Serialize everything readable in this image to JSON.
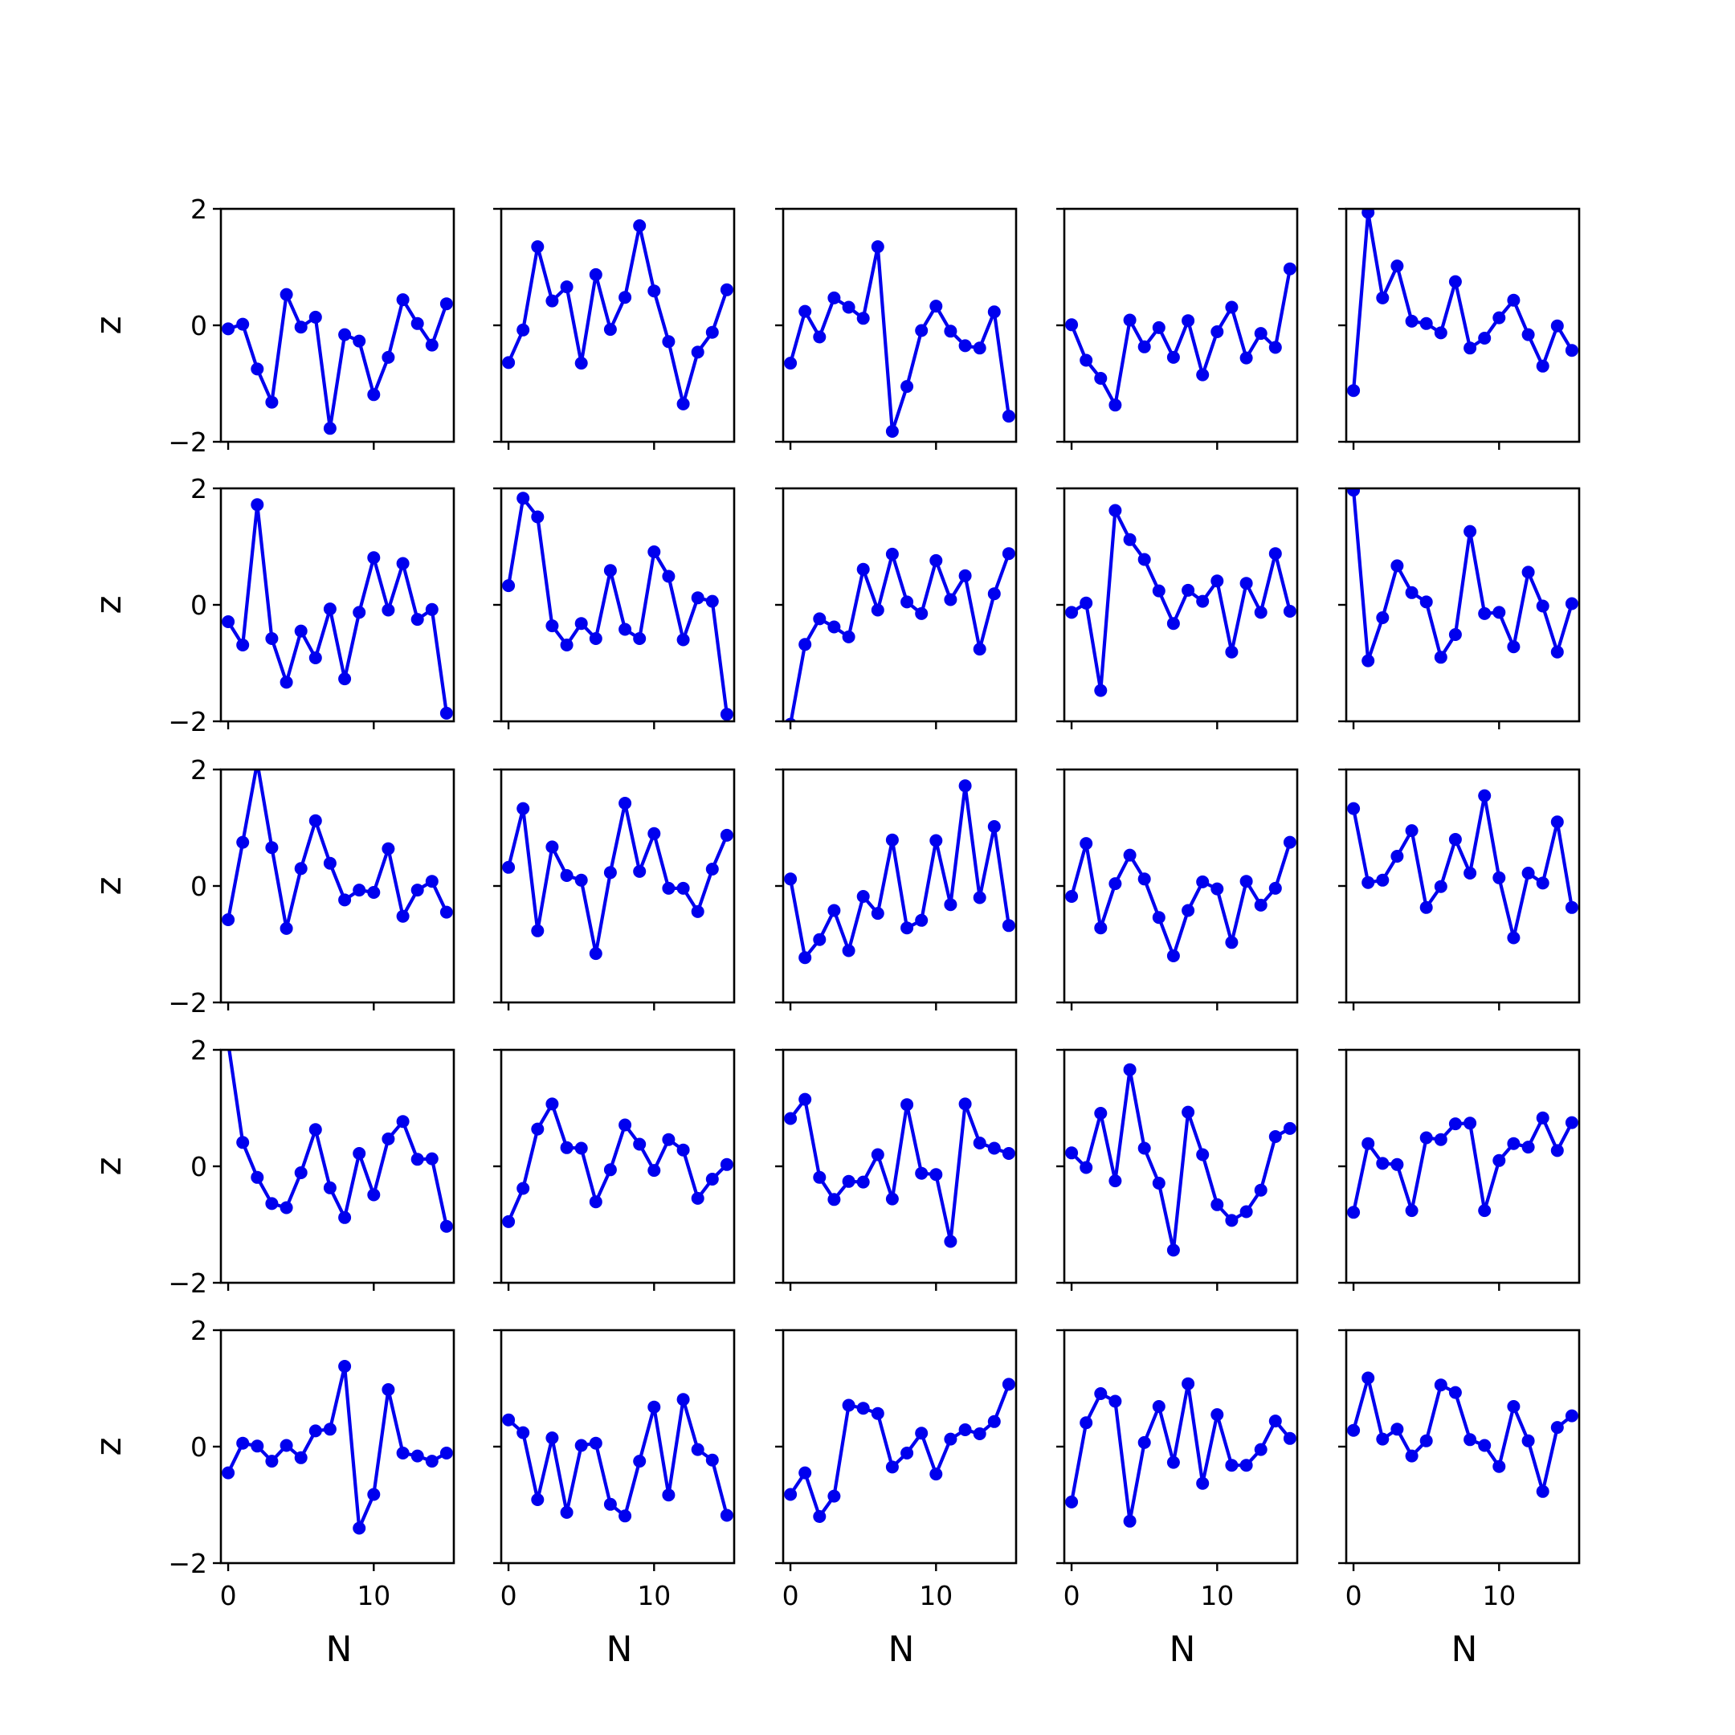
{
  "chart_data": {
    "type": "line",
    "grid": {
      "rows": 5,
      "cols": 5
    },
    "xlabel": "N",
    "ylabel": "z",
    "xlim": [
      -0.5,
      15.5
    ],
    "ylim": [
      -2,
      2
    ],
    "xticks": [
      0,
      10
    ],
    "xtick_labels": [
      "0",
      "10"
    ],
    "yticks": [
      2,
      0,
      -2
    ],
    "ytick_labels": [
      "2",
      "0",
      "−2"
    ],
    "line_color": "#0000ee",
    "marker": "circle",
    "legend": "none",
    "panel_grid": "off",
    "x": [
      0,
      1,
      2,
      3,
      4,
      5,
      6,
      7,
      8,
      9,
      10,
      11,
      12,
      13,
      14,
      15
    ],
    "panels": [
      {
        "values": [
          -0.06,
          0.02,
          -0.75,
          -1.32,
          0.53,
          -0.03,
          0.14,
          -1.77,
          -0.16,
          -0.27,
          -1.19,
          -0.55,
          0.44,
          0.03,
          -0.34,
          0.37
        ]
      },
      {
        "values": [
          -0.64,
          -0.08,
          1.35,
          0.42,
          0.66,
          -0.65,
          0.87,
          -0.07,
          0.48,
          1.71,
          0.59,
          -0.28,
          -1.35,
          -0.46,
          -0.12,
          0.61
        ]
      },
      {
        "values": [
          -0.65,
          0.24,
          -0.2,
          0.47,
          0.31,
          0.12,
          1.35,
          -1.82,
          -1.05,
          -0.09,
          0.33,
          -0.1,
          -0.35,
          -0.39,
          0.23,
          -1.56
        ]
      },
      {
        "values": [
          0.01,
          -0.6,
          -0.91,
          -1.37,
          0.09,
          -0.37,
          -0.04,
          -0.55,
          0.08,
          -0.85,
          -0.11,
          0.31,
          -0.56,
          -0.14,
          -0.38,
          0.97
        ]
      },
      {
        "values": [
          -1.12,
          1.94,
          0.47,
          1.02,
          0.07,
          0.03,
          -0.13,
          0.75,
          -0.39,
          -0.22,
          0.13,
          0.43,
          -0.16,
          -0.7,
          -0.01,
          -0.43
        ]
      },
      {
        "values": [
          -0.29,
          -0.69,
          1.72,
          -0.58,
          -1.33,
          -0.45,
          -0.91,
          -0.07,
          -1.27,
          -0.13,
          0.81,
          -0.09,
          0.71,
          -0.25,
          -0.08,
          -1.86
        ]
      },
      {
        "values": [
          0.33,
          1.83,
          1.51,
          -0.36,
          -0.69,
          -0.32,
          -0.58,
          0.59,
          -0.42,
          -0.58,
          0.91,
          0.49,
          -0.6,
          0.12,
          0.06,
          -1.88
        ]
      },
      {
        "values": [
          -2.05,
          -0.68,
          -0.24,
          -0.38,
          -0.55,
          0.61,
          -0.09,
          0.87,
          0.05,
          -0.15,
          0.76,
          0.09,
          0.5,
          -0.76,
          0.19,
          0.88
        ]
      },
      {
        "values": [
          -0.13,
          0.03,
          -1.47,
          1.62,
          1.12,
          0.78,
          0.24,
          -0.32,
          0.25,
          0.06,
          0.41,
          -0.81,
          0.37,
          -0.13,
          0.88,
          -0.11
        ]
      },
      {
        "values": [
          1.97,
          -0.96,
          -0.22,
          0.67,
          0.21,
          0.05,
          -0.9,
          -0.51,
          1.26,
          -0.15,
          -0.13,
          -0.72,
          0.56,
          -0.02,
          -0.81,
          0.02
        ]
      },
      {
        "values": [
          -0.58,
          0.75,
          2.12,
          0.66,
          -0.73,
          0.3,
          1.12,
          0.39,
          -0.24,
          -0.07,
          -0.11,
          0.64,
          -0.52,
          -0.07,
          0.08,
          -0.45
        ]
      },
      {
        "values": [
          0.32,
          1.33,
          -0.77,
          0.67,
          0.18,
          0.1,
          -1.16,
          0.23,
          1.42,
          0.25,
          0.9,
          -0.04,
          -0.04,
          -0.44,
          0.29,
          0.87
        ]
      },
      {
        "values": [
          0.12,
          -1.23,
          -0.92,
          -0.42,
          -1.11,
          -0.18,
          -0.47,
          0.79,
          -0.72,
          -0.59,
          0.78,
          -0.32,
          1.72,
          -0.2,
          1.02,
          -0.68
        ]
      },
      {
        "values": [
          -0.18,
          0.73,
          -0.72,
          0.04,
          0.53,
          0.12,
          -0.54,
          -1.2,
          -0.42,
          0.07,
          -0.05,
          -0.97,
          0.08,
          -0.33,
          -0.04,
          0.75
        ]
      },
      {
        "values": [
          1.33,
          0.06,
          0.1,
          0.51,
          0.95,
          -0.37,
          -0.01,
          0.8,
          0.22,
          1.55,
          0.14,
          -0.89,
          0.22,
          0.05,
          1.1,
          -0.37
        ]
      },
      {
        "values": [
          2.12,
          0.41,
          -0.19,
          -0.64,
          -0.71,
          -0.11,
          0.63,
          -0.37,
          -0.88,
          0.22,
          -0.49,
          0.47,
          0.77,
          0.12,
          0.13,
          -1.03
        ]
      },
      {
        "values": [
          -0.95,
          -0.38,
          0.64,
          1.07,
          0.32,
          0.31,
          -0.61,
          -0.06,
          0.71,
          0.38,
          -0.07,
          0.46,
          0.28,
          -0.55,
          -0.22,
          0.03
        ]
      },
      {
        "values": [
          0.82,
          1.15,
          -0.19,
          -0.57,
          -0.26,
          -0.27,
          0.2,
          -0.56,
          1.06,
          -0.12,
          -0.14,
          -1.29,
          1.07,
          0.4,
          0.31,
          0.22
        ]
      },
      {
        "values": [
          0.23,
          -0.02,
          0.91,
          -0.25,
          1.66,
          0.31,
          -0.29,
          -1.44,
          0.93,
          0.2,
          -0.66,
          -0.93,
          -0.78,
          -0.41,
          0.51,
          0.65
        ]
      },
      {
        "values": [
          -0.79,
          0.39,
          0.05,
          0.03,
          -0.76,
          0.49,
          0.46,
          0.73,
          0.74,
          -0.76,
          0.1,
          0.39,
          0.33,
          0.83,
          0.27,
          0.75
        ]
      },
      {
        "values": [
          -0.45,
          0.06,
          0.01,
          -0.25,
          0.02,
          -0.19,
          0.27,
          0.3,
          1.38,
          -1.4,
          -0.82,
          0.98,
          -0.11,
          -0.16,
          -0.25,
          -0.11
        ]
      },
      {
        "values": [
          0.46,
          0.24,
          -0.91,
          0.15,
          -1.13,
          0.02,
          0.06,
          -0.99,
          -1.19,
          -0.25,
          0.68,
          -0.83,
          0.81,
          -0.05,
          -0.23,
          -1.18
        ]
      },
      {
        "values": [
          -0.82,
          -0.45,
          -1.2,
          -0.85,
          0.71,
          0.66,
          0.57,
          -0.35,
          -0.11,
          0.23,
          -0.47,
          0.13,
          0.29,
          0.22,
          0.43,
          1.07
        ]
      },
      {
        "values": [
          -0.95,
          0.41,
          0.91,
          0.78,
          -1.28,
          0.07,
          0.69,
          -0.27,
          1.08,
          -0.63,
          0.55,
          -0.32,
          -0.32,
          -0.05,
          0.44,
          0.14
        ]
      },
      {
        "values": [
          0.28,
          1.18,
          0.13,
          0.3,
          -0.16,
          0.1,
          1.06,
          0.93,
          0.12,
          0.02,
          -0.34,
          0.69,
          0.1,
          -0.77,
          0.33,
          0.53
        ]
      }
    ]
  }
}
